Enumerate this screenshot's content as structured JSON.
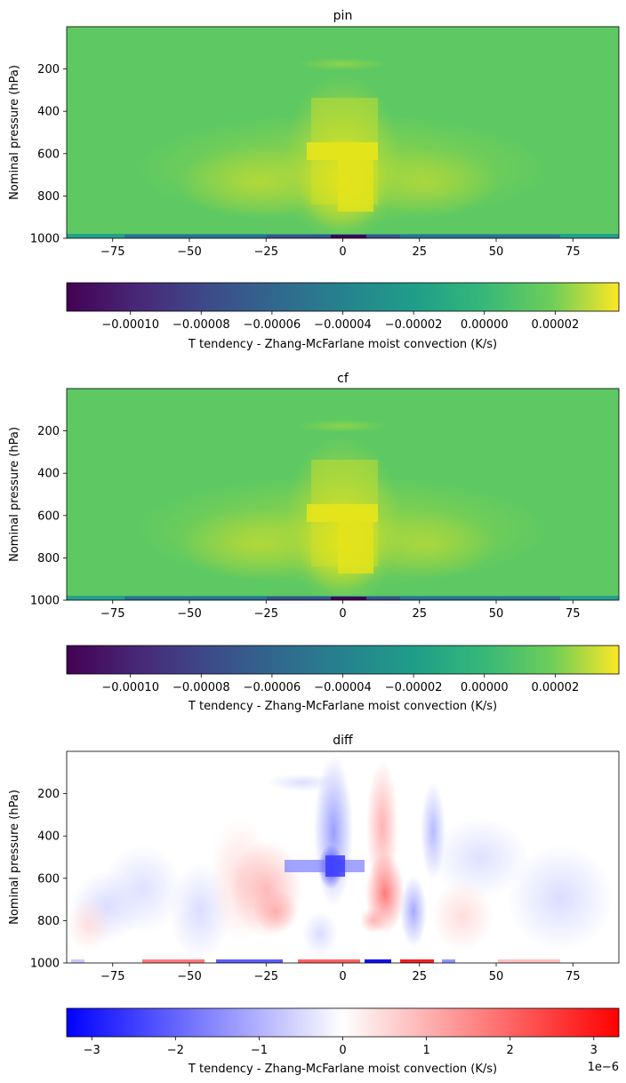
{
  "chart_data": [
    {
      "type": "heatmap",
      "title": "pin",
      "ylabel": "Nominal pressure (hPa)",
      "xlim": [
        -90,
        90
      ],
      "ylim": [
        1000,
        0
      ],
      "xticks": [
        -75,
        -50,
        -25,
        0,
        25,
        50,
        75
      ],
      "yticks": [
        200,
        400,
        600,
        800,
        1000
      ],
      "xtick_labels": [
        "−75",
        "−50",
        "−25",
        "0",
        "25",
        "50",
        "75"
      ],
      "ytick_labels": [
        "200",
        "400",
        "600",
        "800",
        "1000"
      ],
      "colormap": "viridis",
      "colorbar": {
        "label": "T tendency - Zhang-McFarlane moist convection (K/s)",
        "vmin": -0.000118,
        "vmax": 3.8e-05,
        "ticks": [
          -0.0001,
          -8e-05,
          -6e-05,
          -4e-05,
          -2e-05,
          0,
          2e-05
        ],
        "tick_labels": [
          "−0.00010",
          "−0.00008",
          "−0.00006",
          "−0.00004",
          "−0.00002",
          "0.00000",
          "0.00002"
        ]
      }
    },
    {
      "type": "heatmap",
      "title": "cf",
      "ylabel": "Nominal pressure (hPa)",
      "xlim": [
        -90,
        90
      ],
      "ylim": [
        1000,
        0
      ],
      "xticks": [
        -75,
        -50,
        -25,
        0,
        25,
        50,
        75
      ],
      "yticks": [
        200,
        400,
        600,
        800,
        1000
      ],
      "xtick_labels": [
        "−75",
        "−50",
        "−25",
        "0",
        "25",
        "50",
        "75"
      ],
      "ytick_labels": [
        "200",
        "400",
        "600",
        "800",
        "1000"
      ],
      "colormap": "viridis",
      "colorbar": {
        "label": "T tendency - Zhang-McFarlane moist convection (K/s)",
        "vmin": -0.000118,
        "vmax": 3.8e-05,
        "ticks": [
          -0.0001,
          -8e-05,
          -6e-05,
          -4e-05,
          -2e-05,
          0,
          2e-05
        ],
        "tick_labels": [
          "−0.00010",
          "−0.00008",
          "−0.00006",
          "−0.00004",
          "−0.00002",
          "0.00000",
          "0.00002"
        ]
      }
    },
    {
      "type": "heatmap",
      "title": "diff",
      "ylabel": "Nominal pressure (hPa)",
      "xlim": [
        -90,
        90
      ],
      "ylim": [
        1000,
        0
      ],
      "xticks": [
        -75,
        -50,
        -25,
        0,
        25,
        50,
        75
      ],
      "yticks": [
        200,
        400,
        600,
        800,
        1000
      ],
      "xtick_labels": [
        "−75",
        "−50",
        "−25",
        "0",
        "25",
        "50",
        "75"
      ],
      "ytick_labels": [
        "200",
        "400",
        "600",
        "800",
        "1000"
      ],
      "colormap": "bwr",
      "colorbar": {
        "label": "T tendency - Zhang-McFarlane moist convection (K/s)",
        "vmin": -3.3,
        "vmax": 3.3,
        "ticks": [
          -3,
          -2,
          -1,
          0,
          1,
          2,
          3
        ],
        "tick_labels": [
          "−3",
          "−2",
          "−1",
          "0",
          "1",
          "2",
          "3"
        ],
        "offset_label": "1e−6"
      }
    }
  ]
}
